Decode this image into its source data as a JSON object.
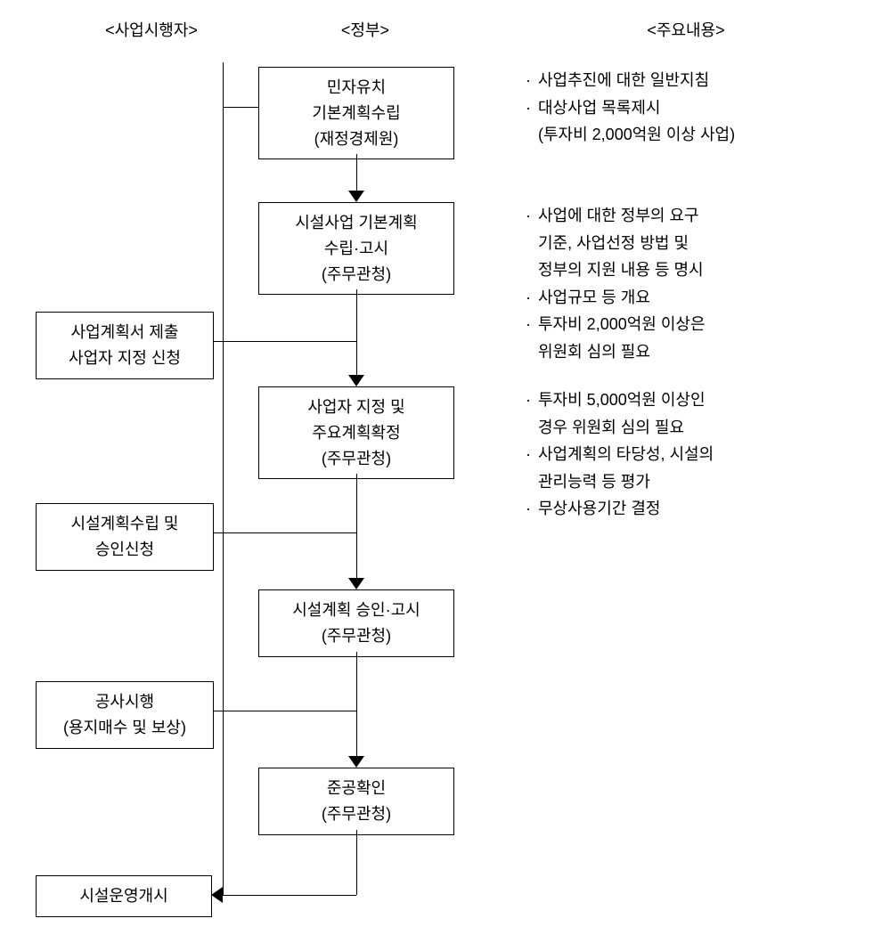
{
  "headers": {
    "left": "<사업시행자>",
    "center": "<정부>",
    "right": "<주요내용>"
  },
  "gov": {
    "b1": {
      "l1": "민자유치",
      "l2": "기본계획수립",
      "l3": "(재정경제원)"
    },
    "b2": {
      "l1": "시설사업 기본계획",
      "l2": "수립·고시",
      "l3": "(주무관청)"
    },
    "b3": {
      "l1": "사업자 지정 및",
      "l2": "주요계획확정",
      "l3": "(주무관청)"
    },
    "b4": {
      "l1": "시설계획 승인·고시",
      "l2": "(주무관청)"
    },
    "b5": {
      "l1": "준공확인",
      "l2": "(주무관청)"
    }
  },
  "left": {
    "b1": {
      "l1": "사업계획서 제출",
      "l2": "사업자 지정 신청"
    },
    "b2": {
      "l1": "시설계획수립 및",
      "l2": "승인신청"
    },
    "b3": {
      "l1": "공사시행",
      "l2": "(용지매수 및 보상)"
    },
    "b4": {
      "l1": "시설운영개시"
    }
  },
  "notes": {
    "n1": [
      {
        "t": "사업추진에 대한 일반지침",
        "b": true
      },
      {
        "t": "대상사업 목록제시",
        "b": true
      },
      {
        "t": "(투자비 2,000억원 이상 사업)",
        "b": false
      }
    ],
    "n2": [
      {
        "t": "사업에 대한 정부의 요구",
        "b": true
      },
      {
        "t": "기준, 사업선정 방법 및",
        "b": false
      },
      {
        "t": "정부의 지원 내용 등 명시",
        "b": false
      },
      {
        "t": "사업규모 등 개요",
        "b": true
      },
      {
        "t": "투자비 2,000억원 이상은",
        "b": true
      },
      {
        "t": "위원회 심의 필요",
        "b": false
      }
    ],
    "n3": [
      {
        "t": "투자비 5,000억원 이상인",
        "b": true
      },
      {
        "t": "경우 위원회 심의 필요",
        "b": false
      },
      {
        "t": "사업계획의 타당성, 시설의",
        "b": true
      },
      {
        "t": "관리능력 등 평가",
        "b": false
      },
      {
        "t": "무상사용기간 결정",
        "b": true
      }
    ]
  },
  "layout": {
    "colLeftX": 80,
    "colCenterX": 365,
    "colRightX": 690,
    "leftBoxX": 10,
    "leftBoxW": 200,
    "govBoxX": 260,
    "govBoxW": 220,
    "notesX": 560
  }
}
